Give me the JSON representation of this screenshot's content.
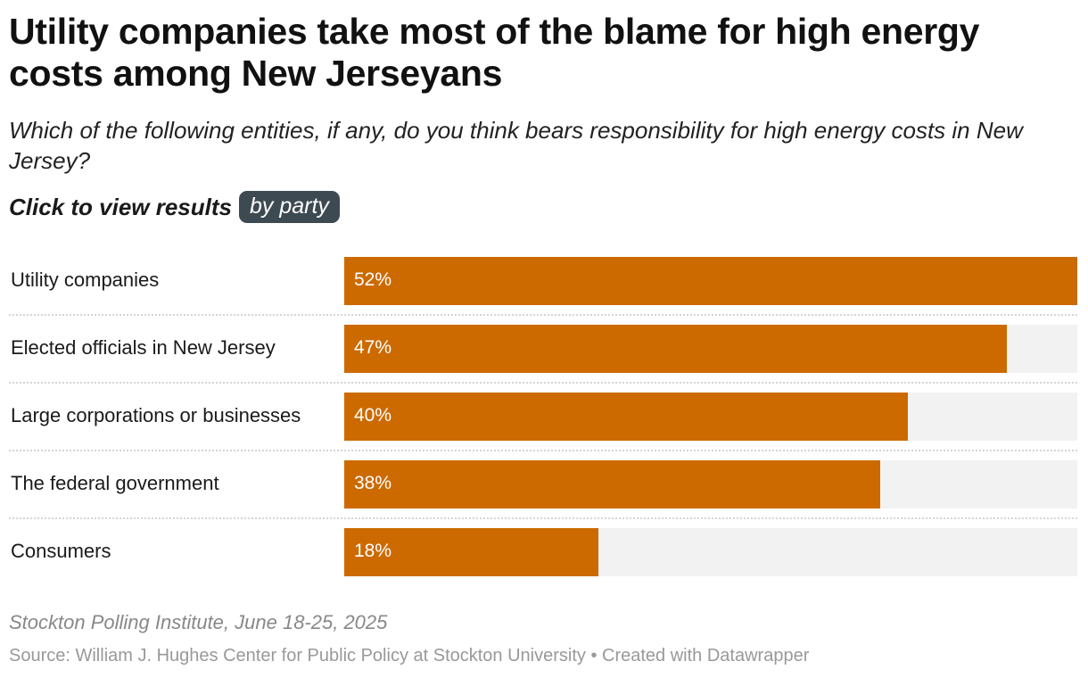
{
  "title": "Utility companies take most of the blame for high energy costs among New Jerseyans",
  "subtitle": "Which of the following entities, if any, do you think bears responsibility for high energy costs in New Jersey?",
  "toggle": {
    "label": "Click to view results",
    "button": "by party"
  },
  "chart_data": {
    "type": "bar",
    "orientation": "horizontal",
    "categories": [
      "Utility companies",
      "Elected officials in New Jersey",
      "Large corporations or businesses",
      "The federal government",
      "Consumers"
    ],
    "values": [
      52,
      47,
      40,
      38,
      18
    ],
    "value_labels": [
      "52%",
      "47%",
      "40%",
      "38%",
      "18%"
    ],
    "xlim": [
      0,
      52
    ],
    "unit": "%",
    "bar_color": "#cc6a00",
    "track_color": "#f2f2f2"
  },
  "footer": {
    "note": "Stockton Polling Institute, June 18-25, 2025",
    "source": "Source: William J. Hughes Center for Public Policy at Stockton University • Created with Datawrapper"
  }
}
